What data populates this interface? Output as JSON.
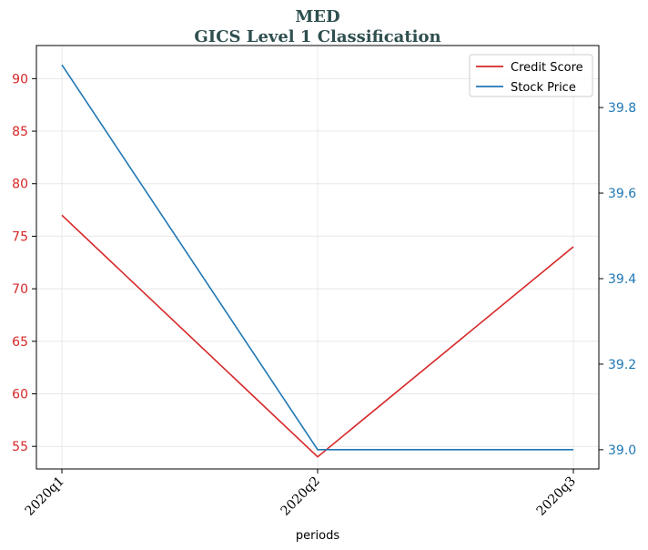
{
  "chart_data": {
    "type": "line",
    "title": "MED",
    "subtitle": "GICS Level 1 Classification",
    "xlabel": "periods",
    "categories": [
      "2020q1",
      "2020q2",
      "2020q3"
    ],
    "series": [
      {
        "name": "Credit Score",
        "axis": "left",
        "color": "#d62728",
        "values": [
          77,
          54,
          74
        ]
      },
      {
        "name": "Stock Price",
        "axis": "right",
        "color": "#1f77b4",
        "values": [
          39.9,
          39.0,
          39.0
        ]
      }
    ],
    "y_left": {
      "ticks": [
        55,
        60,
        65,
        70,
        75,
        80,
        85,
        90
      ],
      "lim": [
        52.85,
        93.15
      ],
      "color": "#d62728"
    },
    "y_right": {
      "ticks": [
        39.0,
        39.2,
        39.4,
        39.6,
        39.8
      ],
      "tick_labels": [
        "39.0",
        "39.2",
        "39.4",
        "39.6",
        "39.8"
      ],
      "lim": [
        38.955,
        39.945
      ],
      "color": "#1f77b4"
    },
    "grid": true,
    "legend": "top-right"
  }
}
